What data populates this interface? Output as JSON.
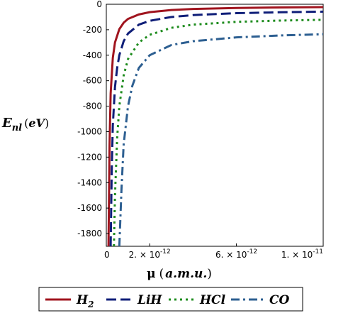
{
  "chart_data": {
    "type": "line",
    "title": "",
    "xlabel": {
      "main": "μ",
      "paren_open": "(",
      "unit": "a.m.u.",
      "paren_close": ")"
    },
    "ylabel": {
      "main": "E",
      "sub": "nl",
      "paren_open": "(",
      "unit": "eV",
      "paren_close": ")"
    },
    "xlim": [
      0,
      1e-11
    ],
    "ylim": [
      -1900,
      0
    ],
    "x_ticks": [
      {
        "value": 0,
        "label": "0"
      },
      {
        "value": 2e-12,
        "label": "2. × 10",
        "exp": "-12"
      },
      {
        "value": 6e-12,
        "label": "6. × 10",
        "exp": "-12"
      },
      {
        "value": 1e-11,
        "label": "1. × 10",
        "exp": "-11"
      }
    ],
    "y_ticks": [
      0,
      -200,
      -400,
      -600,
      -800,
      -1000,
      -1200,
      -1400,
      -1600,
      -1800
    ],
    "y_tick_labels": [
      "0",
      "-200",
      "-400",
      "-600",
      "-800",
      "-1000",
      "-1200",
      "-1400",
      "-1600",
      "-1800"
    ],
    "grid": false,
    "legend_position": "bottom",
    "series": [
      {
        "name": "H",
        "name_sub": "2",
        "color": "#a0141e",
        "dash": "solid",
        "x": [
          1e-13,
          1.5e-13,
          2e-13,
          3e-13,
          4e-13,
          6e-13,
          8e-13,
          1e-12,
          1.5e-12,
          2e-12,
          3e-12,
          4e-12,
          6e-12,
          8e-12,
          1e-11
        ],
        "y": [
          -1900,
          -1100,
          -700,
          -420,
          -300,
          -195,
          -145,
          -115,
          -80,
          -62,
          -45,
          -37,
          -29,
          -25,
          -22
        ]
      },
      {
        "name": "LiH",
        "color": "#0f1e78",
        "dash": "dash",
        "x": [
          2e-13,
          2.5e-13,
          3e-13,
          4e-13,
          5e-13,
          6e-13,
          8e-13,
          1e-12,
          1.5e-12,
          2e-12,
          3e-12,
          4e-12,
          6e-12,
          8e-12,
          1e-11
        ],
        "y": [
          -1900,
          -1300,
          -950,
          -650,
          -500,
          -400,
          -290,
          -230,
          -160,
          -130,
          -100,
          -85,
          -70,
          -63,
          -58
        ]
      },
      {
        "name": "HCl",
        "color": "#1e8c1e",
        "dash": "dot",
        "x": [
          3.5e-13,
          4e-13,
          5e-13,
          6e-13,
          8e-13,
          1e-12,
          1.5e-12,
          2e-12,
          3e-12,
          4e-12,
          6e-12,
          8e-12,
          1e-11
        ],
        "y": [
          -1900,
          -1500,
          -1050,
          -800,
          -560,
          -430,
          -300,
          -240,
          -185,
          -160,
          -138,
          -128,
          -122
        ]
      },
      {
        "name": "CO",
        "color": "#2d5f91",
        "dash": "dashdot",
        "x": [
          6e-13,
          7e-13,
          8e-13,
          1e-12,
          1.2e-12,
          1.5e-12,
          2e-12,
          3e-12,
          4e-12,
          6e-12,
          8e-12,
          1e-11
        ],
        "y": [
          -1900,
          -1450,
          -1100,
          -800,
          -640,
          -500,
          -400,
          -320,
          -290,
          -260,
          -245,
          -235
        ]
      }
    ]
  }
}
